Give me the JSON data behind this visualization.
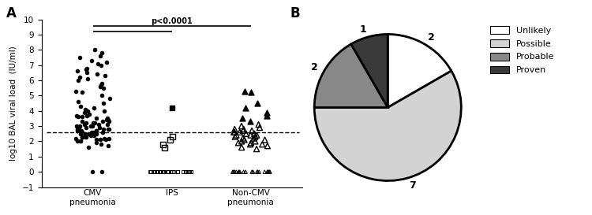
{
  "panel_A_label": "A",
  "panel_B_label": "B",
  "ylabel": "log10 BAL viral load  (IU/ml)",
  "ylim": [
    -1,
    10
  ],
  "yticks": [
    -1,
    0,
    1,
    2,
    3,
    4,
    5,
    6,
    7,
    8,
    9,
    10
  ],
  "dashed_line_y": 2.6,
  "categories": [
    "CMV\npneumonia",
    "IPS",
    "Non-CMV\npneumonia"
  ],
  "pvalue_text": "p<0.0001",
  "cmv_filled_dots": [
    1.6,
    1.7,
    1.8,
    1.9,
    2.0,
    2.0,
    2.0,
    2.1,
    2.1,
    2.1,
    2.2,
    2.2,
    2.2,
    2.3,
    2.3,
    2.3,
    2.3,
    2.4,
    2.4,
    2.4,
    2.5,
    2.5,
    2.5,
    2.5,
    2.6,
    2.6,
    2.6,
    2.6,
    2.7,
    2.7,
    2.7,
    2.7,
    2.8,
    2.8,
    2.8,
    2.8,
    2.9,
    2.9,
    2.9,
    3.0,
    3.0,
    3.0,
    3.0,
    3.1,
    3.1,
    3.1,
    3.2,
    3.2,
    3.2,
    3.3,
    3.3,
    3.3,
    3.4,
    3.4,
    3.5,
    3.5,
    3.6,
    3.6,
    3.7,
    3.7,
    3.8,
    3.9,
    4.0,
    4.0,
    4.1,
    4.2,
    4.3,
    4.5,
    4.6,
    4.8,
    5.0,
    5.2,
    5.3,
    5.5,
    5.6,
    5.7,
    5.8,
    6.0,
    6.1,
    6.2,
    6.3,
    6.4,
    6.5,
    6.6,
    6.7,
    6.8,
    7.0,
    7.1,
    7.2,
    7.3,
    7.5,
    7.6,
    7.8,
    8.0,
    0.0,
    0.0
  ],
  "ips_filled_squares": [
    4.2
  ],
  "ips_open_squares": [
    2.3,
    2.1,
    1.8,
    1.6
  ],
  "noncmv_filled_triangles": [
    5.3,
    5.2,
    4.5,
    4.2,
    3.9,
    3.7,
    3.5,
    3.3
  ],
  "noncmv_open_triangles": [
    2.8,
    2.7,
    2.6,
    2.5,
    2.4,
    2.3,
    2.2,
    2.1,
    2.0,
    1.9,
    1.8,
    1.7,
    1.6,
    1.5,
    2.9,
    3.0,
    3.1,
    2.5,
    2.3,
    2.0,
    2.7,
    2.4,
    1.8,
    2.1,
    2.6,
    2.8,
    2.2,
    2.4,
    2.6,
    1.9
  ],
  "pie_values": [
    2,
    7,
    2,
    1
  ],
  "pie_labels": [
    "2",
    "7",
    "2",
    "1"
  ],
  "pie_colors": [
    "#ffffff",
    "#d3d3d3",
    "#888888",
    "#3a3a3a"
  ],
  "pie_legend_labels": [
    "Unlikely",
    "Possible",
    "Probable",
    "Proven"
  ],
  "pie_edgecolor": "#000000",
  "pie_linewidth": 2.0,
  "background_color": "#ffffff"
}
